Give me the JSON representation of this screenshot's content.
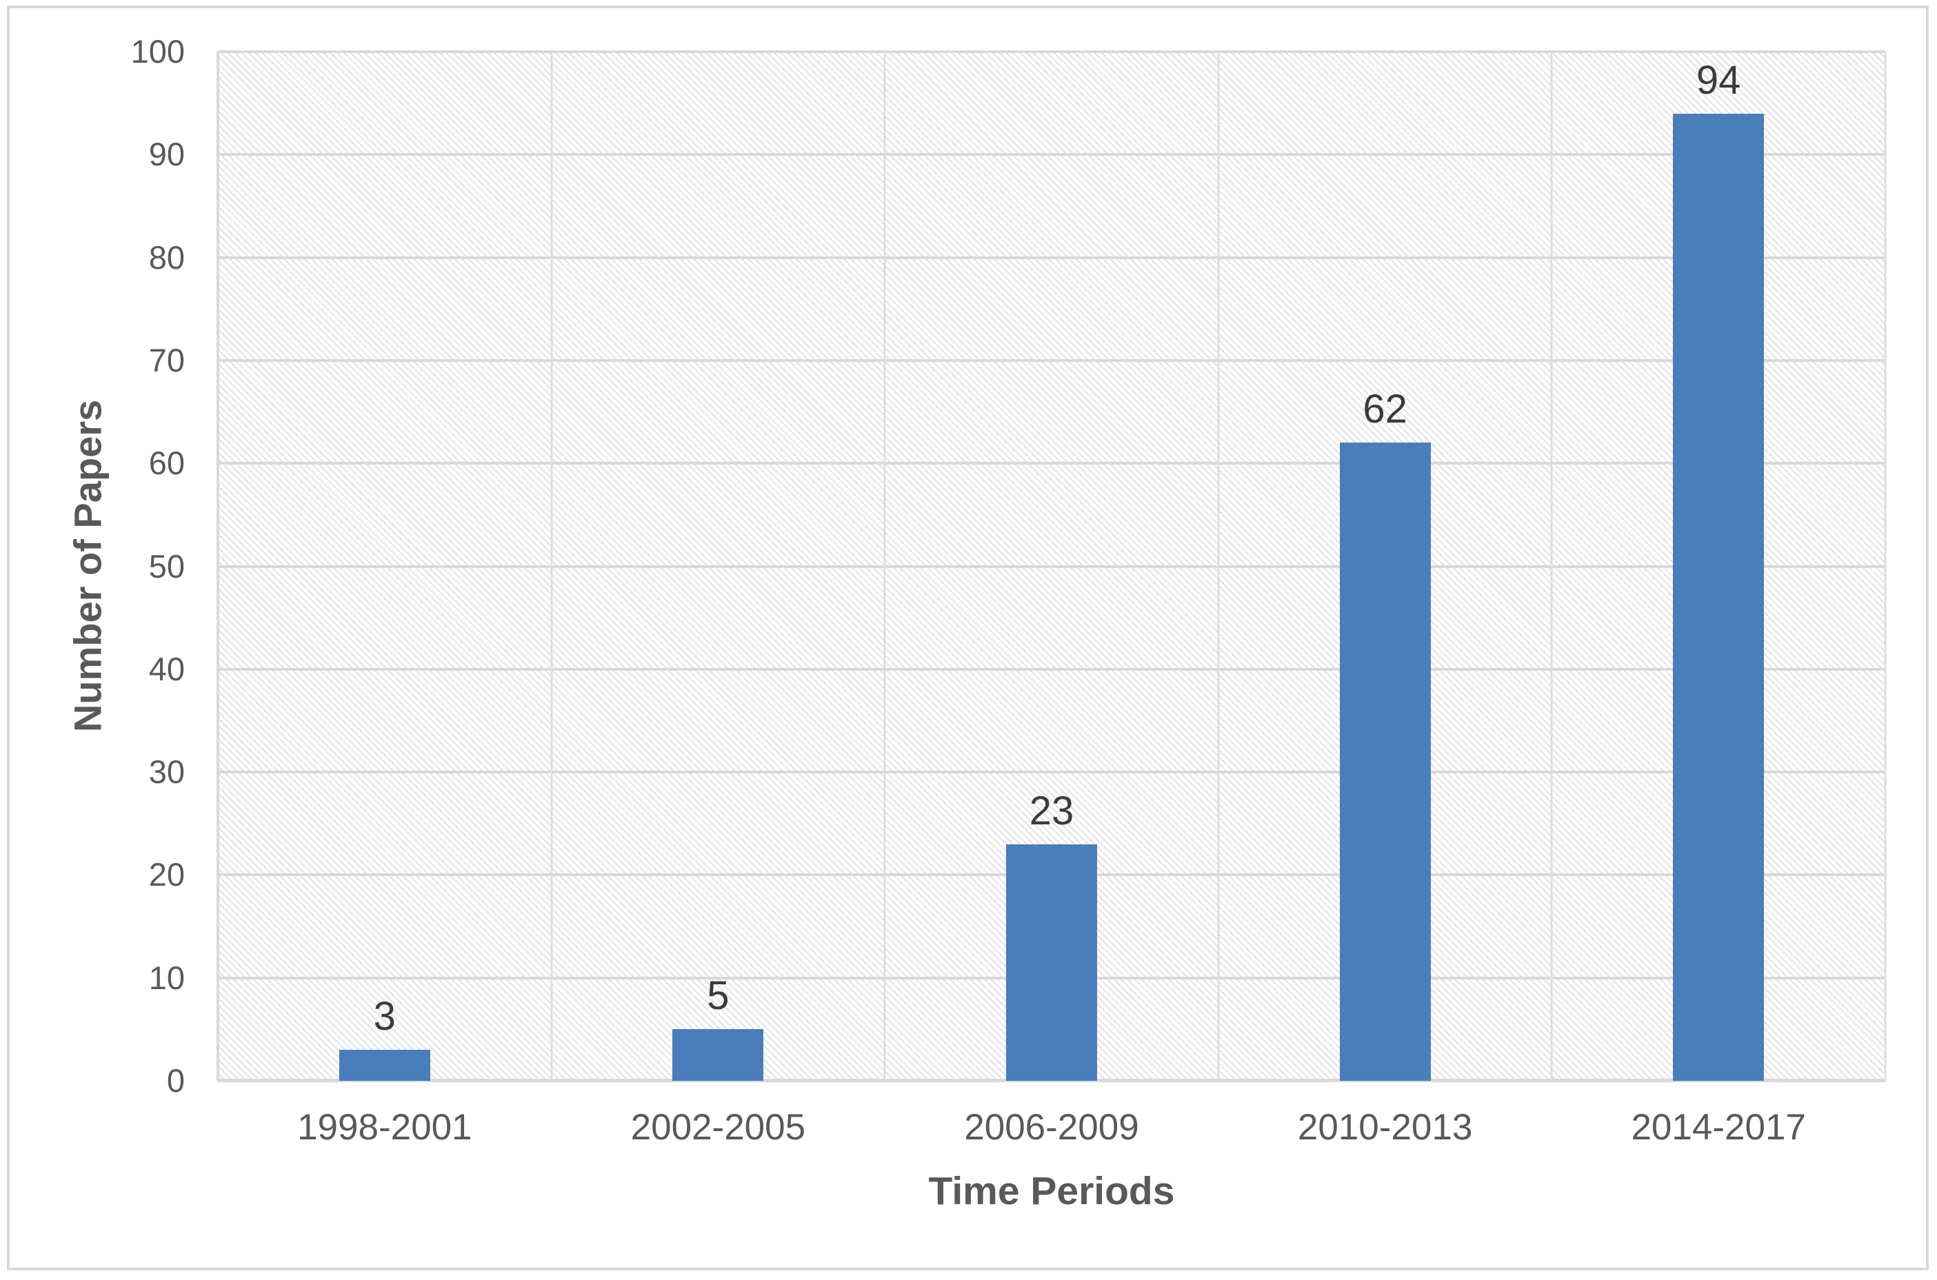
{
  "chart_data": {
    "type": "bar",
    "title": "",
    "categories": [
      "1998-2001",
      "2002-2005",
      "2006-2009",
      "2010-2013",
      "2014-2017"
    ],
    "values": [
      3,
      5,
      23,
      62,
      94
    ],
    "data_labels": [
      "3",
      "5",
      "23",
      "62",
      "94"
    ],
    "xlabel": "Time Periods",
    "ylabel": "Number of Papers",
    "ylim": [
      0,
      100
    ],
    "yticks": [
      0,
      10,
      20,
      30,
      40,
      50,
      60,
      70,
      80,
      90,
      100
    ],
    "grid": "horizontal and vertical gridlines, light gray",
    "background_pattern": "light diagonal hatch",
    "legend_position": "none",
    "colors": {
      "bar": "#4a7dbc",
      "gridline": "#d9d9d9",
      "tick_text": "#595959",
      "data_label_text": "#3b3b3b",
      "frame_border": "#d9d9d9"
    }
  }
}
